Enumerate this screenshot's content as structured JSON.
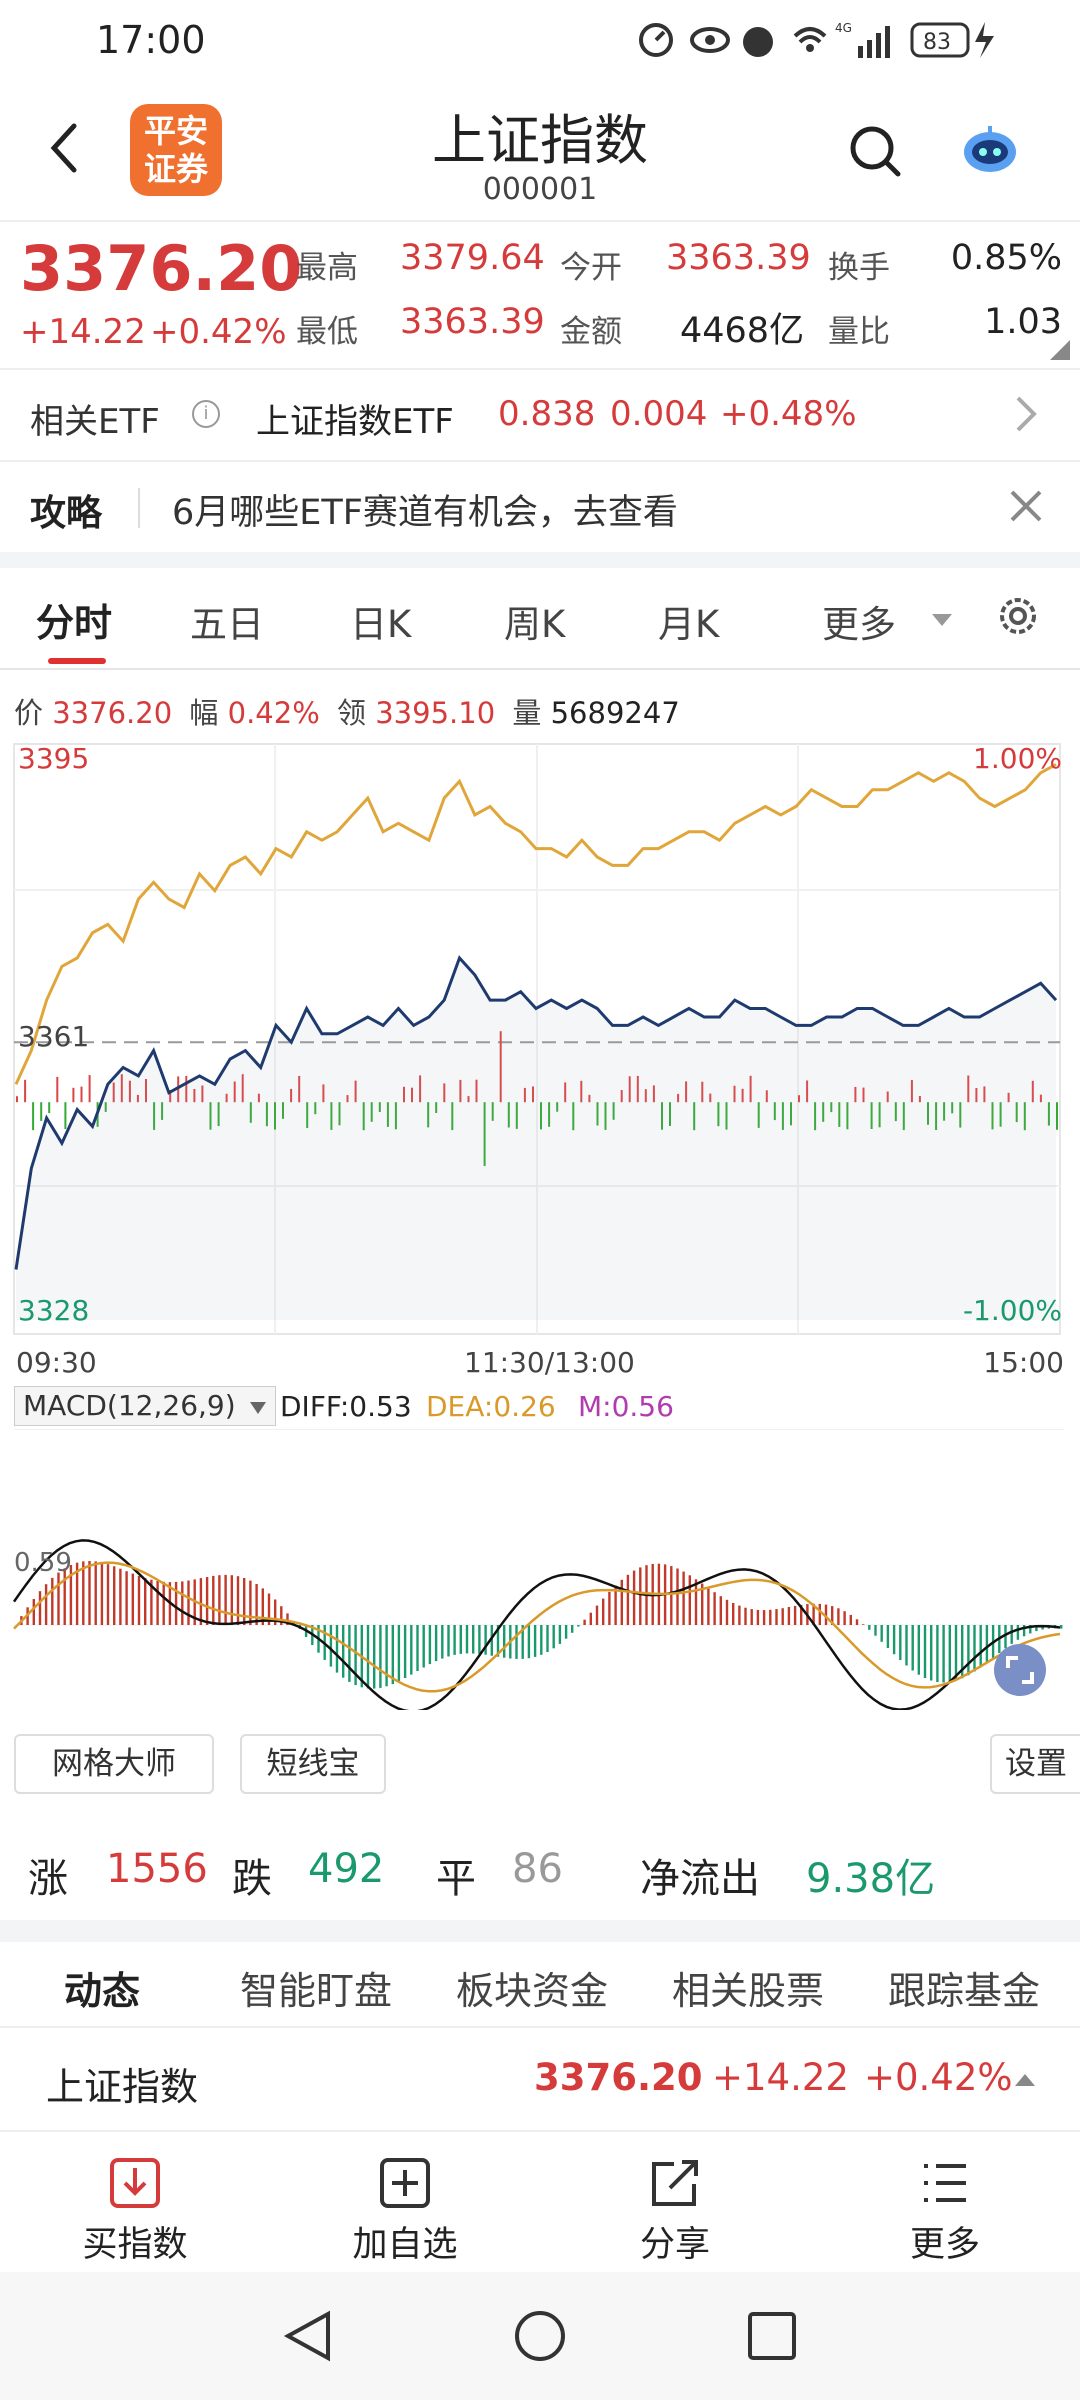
{
  "status_bar": {
    "time": "17:00",
    "battery": "83",
    "network": "4G"
  },
  "header": {
    "logo_line1": "平安",
    "logo_line2": "证券",
    "title": "上证指数",
    "code": "000001"
  },
  "quote": {
    "price": "3376.20",
    "change": "+14.22",
    "change_pct": "+0.42%",
    "high_label": "最高",
    "high": "3379.64",
    "open_label": "今开",
    "open": "3363.39",
    "turnover_label": "换手",
    "turnover": "0.85%",
    "low_label": "最低",
    "low": "3363.39",
    "amount_label": "金额",
    "amount": "4468亿",
    "volratio_label": "量比",
    "volratio": "1.03"
  },
  "etf": {
    "label": "相关ETF",
    "name": "上证指数ETF",
    "price": "0.838",
    "change": "0.004",
    "pct": "+0.48%"
  },
  "tip": {
    "label": "攻略",
    "text": "6月哪些ETF赛道有机会，去查看"
  },
  "tabs": {
    "t1": "分时",
    "t2": "五日",
    "t3": "日K",
    "t4": "周K",
    "t5": "月K",
    "more": "更多"
  },
  "info": {
    "price_label": "价",
    "price": "3376.20",
    "amp_label": "幅",
    "amp": "0.42%",
    "lead_label": "领",
    "lead": "3395.10",
    "vol_label": "量",
    "vol": "5689247"
  },
  "chart_axis": {
    "top": "3395",
    "top_pct": "1.00%",
    "mid": "3361",
    "bottom": "3328",
    "bottom_pct": "-1.00%",
    "t_start": "09:30",
    "t_mid": "11:30/13:00",
    "t_end": "15:00"
  },
  "macd": {
    "label": "MACD(12,26,9)",
    "diff": "DIFF:0.53",
    "dea": "DEA:0.26",
    "m": "M:0.56",
    "axis": "0.59"
  },
  "tools": {
    "grid": "网格大师",
    "short": "短线宝",
    "settings": "设置"
  },
  "breadth": {
    "up_label": "涨",
    "up": "1556",
    "down_label": "跌",
    "down": "492",
    "flat_label": "平",
    "flat": "86",
    "flow_label": "净流出",
    "flow": "9.38亿"
  },
  "section_tabs": {
    "s1": "动态",
    "s2": "智能盯盘",
    "s3": "板块资金",
    "s4": "相关股票",
    "s5": "跟踪基金"
  },
  "index_row": {
    "name": "上证指数",
    "price": "3376.20",
    "change": "+14.22",
    "pct": "+0.42%"
  },
  "bottom_nav": {
    "buy": "买指数",
    "add": "加自选",
    "share": "分享",
    "more": "更多"
  },
  "chart_data": {
    "type": "line",
    "y_range": [
      3328,
      3395
    ],
    "ref_value": 3361,
    "x_labels": [
      "09:30",
      "11:30/13:00",
      "15:00"
    ],
    "series": [
      {
        "color": "#1f3a6e",
        "values": [
          3334,
          3346,
          3352,
          3349,
          3353,
          3351,
          3356,
          3358,
          3357,
          3360,
          3355,
          3356,
          3357,
          3356,
          3359,
          3360,
          3358,
          3363,
          3361,
          3365,
          3362,
          3362,
          3363,
          3364,
          3363,
          3365,
          3363,
          3364,
          3366,
          3371,
          3369,
          3366,
          3366,
          3367,
          3365,
          3366,
          3365,
          3366,
          3365,
          3363,
          3363,
          3364,
          3363,
          3364,
          3365,
          3364,
          3364,
          3366,
          3365,
          3365,
          3364,
          3363,
          3363,
          3364,
          3364,
          3365,
          3365,
          3364,
          3363,
          3363,
          3364,
          3365,
          3364,
          3364,
          3365,
          3366,
          3367,
          3368,
          3366
        ]
      },
      {
        "color": "#e0a63a",
        "values": [
          3356,
          3360,
          3366,
          3370,
          3371,
          3374,
          3375,
          3373,
          3378,
          3380,
          3378,
          3377,
          3381,
          3379,
          3382,
          3383,
          3381,
          3384,
          3383,
          3386,
          3385,
          3386,
          3388,
          3390,
          3386,
          3387,
          3386,
          3385,
          3390,
          3392,
          3388,
          3389,
          3387,
          3386,
          3384,
          3384,
          3383,
          3385,
          3383,
          3382,
          3382,
          3384,
          3384,
          3385,
          3386,
          3386,
          3385,
          3387,
          3388,
          3389,
          3388,
          3389,
          3391,
          3390,
          3389,
          3389,
          3391,
          3391,
          3392,
          3393,
          3392,
          3393,
          3392,
          3390,
          3389,
          3390,
          3391,
          3393,
          3394
        ]
      }
    ]
  }
}
